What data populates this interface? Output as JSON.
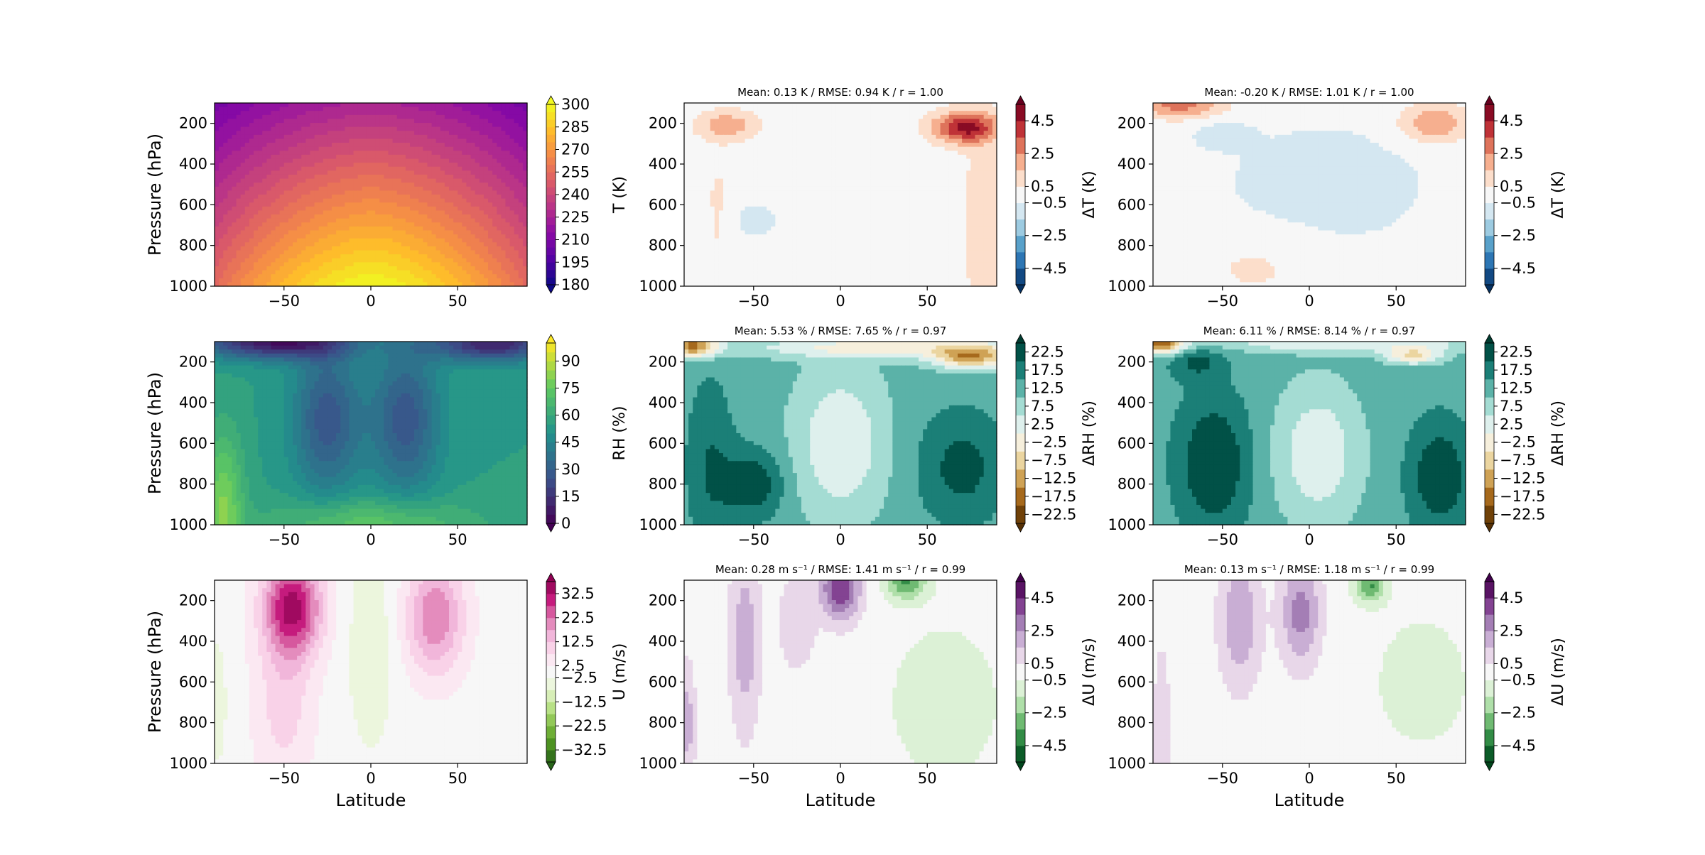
{
  "chart_data": [
    {
      "type": "heatmap",
      "variable": "T",
      "title": "",
      "xlabel": "",
      "ylabel": "Pressure (hPa)",
      "xlim": [
        -90,
        90
      ],
      "ylim": [
        1000,
        100
      ],
      "xticks": [
        -50,
        0,
        50
      ],
      "yticks": [
        200,
        400,
        600,
        800,
        1000
      ],
      "colorbar": {
        "label": "T (K)",
        "ticks": [
          300,
          285,
          270,
          255,
          240,
          225,
          210,
          195,
          180
        ],
        "range": [
          180,
          300
        ],
        "colormap": "plasma"
      }
    },
    {
      "type": "heatmap",
      "variable": "ΔT",
      "title": "Mean: 0.13 K / RMSE: 0.94 K / r = 1.00",
      "xlabel": "",
      "ylabel": "",
      "xlim": [
        -90,
        90
      ],
      "ylim": [
        1000,
        100
      ],
      "xticks": [
        -50,
        0,
        50
      ],
      "yticks": [
        200,
        400,
        600,
        800,
        1000
      ],
      "colorbar": {
        "label": "ΔT (K)",
        "ticks": [
          "4.5",
          "2.5",
          "0.5",
          "−0.5",
          "−2.5",
          "−4.5"
        ],
        "range": [
          -5.5,
          5.5
        ],
        "colormap": "RdBu_r"
      }
    },
    {
      "type": "heatmap",
      "variable": "ΔT",
      "title": "Mean: -0.20 K / RMSE: 1.01 K / r = 1.00",
      "xlabel": "",
      "ylabel": "",
      "xlim": [
        -90,
        90
      ],
      "ylim": [
        1000,
        100
      ],
      "xticks": [
        -50,
        0,
        50
      ],
      "yticks": [
        200,
        400,
        600,
        800,
        1000
      ],
      "colorbar": {
        "label": "ΔT (K)",
        "ticks": [
          "4.5",
          "2.5",
          "0.5",
          "−0.5",
          "−2.5",
          "−4.5"
        ],
        "range": [
          -5.5,
          5.5
        ],
        "colormap": "RdBu_r"
      }
    },
    {
      "type": "heatmap",
      "variable": "RH",
      "title": "",
      "xlabel": "",
      "ylabel": "Pressure (hPa)",
      "xlim": [
        -90,
        90
      ],
      "ylim": [
        1000,
        100
      ],
      "xticks": [
        -50,
        0,
        50
      ],
      "yticks": [
        200,
        400,
        600,
        800,
        1000
      ],
      "colorbar": {
        "label": "RH (%)",
        "ticks": [
          90,
          75,
          60,
          45,
          30,
          15,
          0
        ],
        "range": [
          0,
          100
        ],
        "colormap": "viridis"
      }
    },
    {
      "type": "heatmap",
      "variable": "ΔRH",
      "title": "Mean: 5.53 % / RMSE: 7.65 % / r = 0.97",
      "xlabel": "",
      "ylabel": "",
      "xlim": [
        -90,
        90
      ],
      "ylim": [
        1000,
        100
      ],
      "xticks": [
        -50,
        0,
        50
      ],
      "yticks": [
        200,
        400,
        600,
        800,
        1000
      ],
      "colorbar": {
        "label": "ΔRH (%)",
        "ticks": [
          "22.5",
          "17.5",
          "12.5",
          "7.5",
          "2.5",
          "−2.5",
          "−7.5",
          "−12.5",
          "−17.5",
          "−22.5"
        ],
        "range": [
          -25,
          25
        ],
        "colormap": "BrBG"
      }
    },
    {
      "type": "heatmap",
      "variable": "ΔRH",
      "title": "Mean: 6.11 % / RMSE: 8.14 % / r = 0.97",
      "xlabel": "",
      "ylabel": "",
      "xlim": [
        -90,
        90
      ],
      "ylim": [
        1000,
        100
      ],
      "xticks": [
        -50,
        0,
        50
      ],
      "yticks": [
        200,
        400,
        600,
        800,
        1000
      ],
      "colorbar": {
        "label": "ΔRH (%)",
        "ticks": [
          "22.5",
          "17.5",
          "12.5",
          "7.5",
          "2.5",
          "−2.5",
          "−7.5",
          "−12.5",
          "−17.5",
          "−22.5"
        ],
        "range": [
          -25,
          25
        ],
        "colormap": "BrBG"
      }
    },
    {
      "type": "heatmap",
      "variable": "U",
      "title": "",
      "xlabel": "Latitude",
      "ylabel": "Pressure (hPa)",
      "xlim": [
        -90,
        90
      ],
      "ylim": [
        1000,
        100
      ],
      "xticks": [
        -50,
        0,
        50
      ],
      "yticks": [
        200,
        400,
        600,
        800,
        1000
      ],
      "colorbar": {
        "label": "U (m/s)",
        "ticks": [
          "32.5",
          "22.5",
          "12.5",
          "2.5",
          "−2.5",
          "−12.5",
          "−22.5",
          "−32.5"
        ],
        "range": [
          -37.5,
          37.5
        ],
        "colormap": "PiYG"
      }
    },
    {
      "type": "heatmap",
      "variable": "ΔU",
      "title": "Mean: 0.28 m s⁻¹ / RMSE: 1.41  m s⁻¹ / r = 0.99",
      "xlabel": "Latitude",
      "ylabel": "",
      "xlim": [
        -90,
        90
      ],
      "ylim": [
        1000,
        100
      ],
      "xticks": [
        -50,
        0,
        50
      ],
      "yticks": [
        200,
        400,
        600,
        800,
        1000
      ],
      "colorbar": {
        "label": "ΔU (m/s)",
        "ticks": [
          "4.5",
          "2.5",
          "0.5",
          "−0.5",
          "−2.5",
          "−4.5"
        ],
        "range": [
          -5.5,
          5.5
        ],
        "colormap": "PRGn"
      }
    },
    {
      "type": "heatmap",
      "variable": "ΔU",
      "title": "Mean: 0.13 m s⁻¹ / RMSE: 1.18  m s⁻¹ / r = 0.99",
      "xlabel": "Latitude",
      "ylabel": "",
      "xlim": [
        -90,
        90
      ],
      "ylim": [
        1000,
        100
      ],
      "xticks": [
        -50,
        0,
        50
      ],
      "yticks": [
        200,
        400,
        600,
        800,
        1000
      ],
      "colorbar": {
        "label": "ΔU (m/s)",
        "ticks": [
          "4.5",
          "2.5",
          "0.5",
          "−0.5",
          "−2.5",
          "−4.5"
        ],
        "range": [
          -5.5,
          5.5
        ],
        "colormap": "PRGn"
      }
    }
  ],
  "colormaps": {
    "plasma": [
      "#0d0887",
      "#5302a3",
      "#8b0aa5",
      "#b83289",
      "#db5c68",
      "#f48849",
      "#febd2a",
      "#f0f921"
    ],
    "viridis": [
      "#440154",
      "#3b528b",
      "#21918c",
      "#5ec962",
      "#fde725"
    ],
    "RdBu_r": [
      "#053061",
      "#2166ac",
      "#4393c3",
      "#92c5de",
      "#d1e5f0",
      "#f7f7f7",
      "#fddbc7",
      "#f4a582",
      "#d6604d",
      "#b2182b",
      "#67001f"
    ],
    "BrBG": [
      "#543005",
      "#8c510a",
      "#bf812d",
      "#dfc27d",
      "#f6e8c3",
      "#f5f5f5",
      "#c7eae5",
      "#80cdc1",
      "#35978f",
      "#01665e",
      "#003c30"
    ],
    "PiYG": [
      "#276419",
      "#4d9221",
      "#7fbc41",
      "#b8e186",
      "#e6f5d0",
      "#f7f7f7",
      "#fde0ef",
      "#f1b6da",
      "#de77ae",
      "#c51b7d",
      "#8e0152"
    ],
    "PRGn": [
      "#00441b",
      "#1b7837",
      "#5aae61",
      "#a6dba0",
      "#d9f0d3",
      "#f7f7f7",
      "#e7d4e8",
      "#c2a5cf",
      "#9970ab",
      "#762a83",
      "#40004b"
    ]
  }
}
